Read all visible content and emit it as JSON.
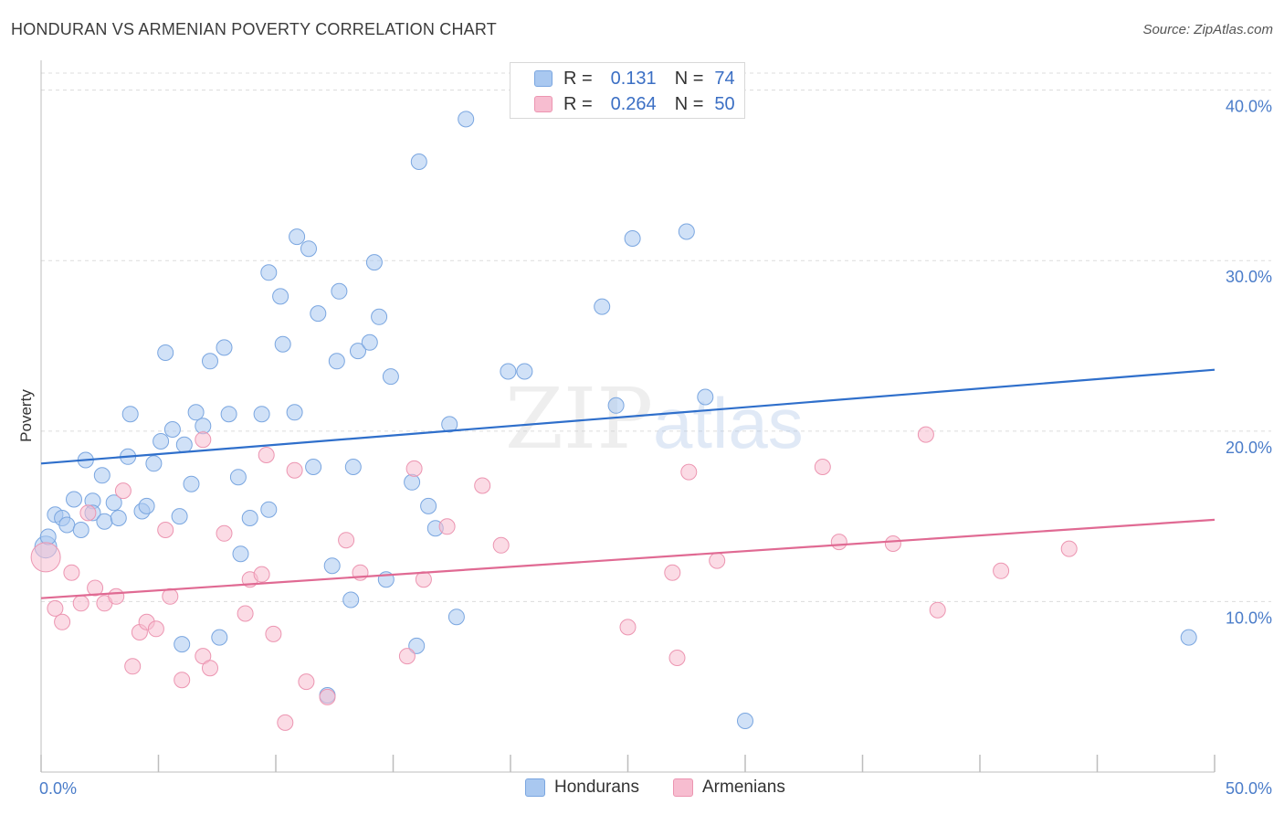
{
  "header": {
    "title": "HONDURAN VS ARMENIAN POVERTY CORRELATION CHART",
    "source": "Source: ZipAtlas.com"
  },
  "watermark": {
    "part1": "ZIP",
    "part2": "atlas"
  },
  "legend": {
    "rows": [
      {
        "r_label": "R =",
        "r_value": "0.131",
        "n_label": "N =",
        "n_value": "74",
        "color": "#a9c8f0",
        "stroke": "#7aa6e0"
      },
      {
        "r_label": "R =",
        "r_value": "0.264",
        "n_label": "N =",
        "n_value": "50",
        "color": "#f7bdd0",
        "stroke": "#ec95b1"
      }
    ],
    "bottom": [
      {
        "label": "Hondurans",
        "color": "#a9c8f0",
        "stroke": "#7aa6e0"
      },
      {
        "label": "Armenians",
        "color": "#f7bdd0",
        "stroke": "#ec95b1"
      }
    ]
  },
  "chart_data": {
    "type": "scatter",
    "xlabel": "",
    "ylabel": "Poverty",
    "xlim": [
      0,
      50
    ],
    "ylim": [
      0,
      41
    ],
    "x_tick_labels": [
      {
        "value": 0,
        "label": "0.0%"
      },
      {
        "value": 50,
        "label": "50.0%"
      }
    ],
    "y_tick_labels": [
      {
        "value": 10,
        "label": "10.0%"
      },
      {
        "value": 20,
        "label": "20.0%"
      },
      {
        "value": 30,
        "label": "30.0%"
      },
      {
        "value": 40,
        "label": "40.0%"
      }
    ],
    "series": [
      {
        "name": "Hondurans",
        "color": "#a9c8f0",
        "stroke": "#7aa6e0",
        "line_color": "#2f6fcb",
        "trend": {
          "x": [
            0,
            50
          ],
          "y": [
            18.1,
            23.6
          ]
        },
        "points": [
          [
            0.2,
            13.2
          ],
          [
            0.3,
            13.8
          ],
          [
            0.6,
            15.1
          ],
          [
            0.9,
            14.9
          ],
          [
            1.1,
            14.5
          ],
          [
            1.4,
            16.0
          ],
          [
            1.7,
            14.2
          ],
          [
            1.9,
            18.3
          ],
          [
            2.2,
            15.9
          ],
          [
            2.2,
            15.2
          ],
          [
            2.6,
            17.4
          ],
          [
            2.7,
            14.7
          ],
          [
            3.1,
            15.8
          ],
          [
            3.3,
            14.9
          ],
          [
            3.7,
            18.5
          ],
          [
            3.8,
            21.0
          ],
          [
            4.3,
            15.3
          ],
          [
            4.5,
            15.6
          ],
          [
            4.8,
            18.1
          ],
          [
            5.1,
            19.4
          ],
          [
            5.3,
            24.6
          ],
          [
            5.6,
            20.1
          ],
          [
            5.9,
            15.0
          ],
          [
            6.1,
            19.2
          ],
          [
            6.4,
            16.9
          ],
          [
            6.6,
            21.1
          ],
          [
            6.9,
            20.3
          ],
          [
            7.2,
            24.1
          ],
          [
            7.6,
            7.9
          ],
          [
            7.8,
            24.9
          ],
          [
            8.0,
            21.0
          ],
          [
            8.4,
            17.3
          ],
          [
            8.5,
            12.8
          ],
          [
            8.9,
            14.9
          ],
          [
            9.4,
            21.0
          ],
          [
            9.7,
            15.4
          ],
          [
            9.7,
            29.3
          ],
          [
            10.2,
            27.9
          ],
          [
            10.3,
            25.1
          ],
          [
            10.8,
            21.1
          ],
          [
            10.9,
            31.4
          ],
          [
            11.4,
            30.7
          ],
          [
            11.6,
            17.9
          ],
          [
            11.8,
            26.9
          ],
          [
            12.2,
            4.5
          ],
          [
            12.4,
            12.1
          ],
          [
            12.7,
            28.2
          ],
          [
            13.2,
            10.1
          ],
          [
            13.3,
            17.9
          ],
          [
            13.5,
            24.7
          ],
          [
            14.0,
            25.2
          ],
          [
            14.2,
            29.9
          ],
          [
            14.4,
            26.7
          ],
          [
            14.7,
            11.3
          ],
          [
            14.9,
            23.2
          ],
          [
            15.8,
            17.0
          ],
          [
            16.0,
            7.4
          ],
          [
            16.1,
            35.8
          ],
          [
            16.5,
            15.6
          ],
          [
            16.8,
            14.3
          ],
          [
            17.4,
            20.4
          ],
          [
            17.7,
            9.1
          ],
          [
            18.1,
            38.3
          ],
          [
            19.9,
            23.5
          ],
          [
            20.6,
            23.5
          ],
          [
            23.9,
            27.3
          ],
          [
            24.5,
            21.5
          ],
          [
            25.2,
            31.3
          ],
          [
            27.5,
            31.7
          ],
          [
            28.3,
            22.0
          ],
          [
            30.0,
            3.0
          ],
          [
            48.9,
            7.9
          ],
          [
            6.0,
            7.5
          ],
          [
            12.6,
            24.1
          ]
        ]
      },
      {
        "name": "Armenians",
        "color": "#f7bdd0",
        "stroke": "#ec95b1",
        "line_color": "#e06a93",
        "trend": {
          "x": [
            0,
            50
          ],
          "y": [
            10.2,
            14.8
          ]
        },
        "points": [
          [
            0.2,
            12.6
          ],
          [
            0.6,
            9.6
          ],
          [
            0.9,
            8.8
          ],
          [
            1.3,
            11.7
          ],
          [
            1.7,
            9.9
          ],
          [
            2.0,
            15.2
          ],
          [
            2.3,
            10.8
          ],
          [
            2.7,
            9.9
          ],
          [
            3.2,
            10.3
          ],
          [
            3.5,
            16.5
          ],
          [
            3.9,
            6.2
          ],
          [
            4.2,
            8.2
          ],
          [
            4.5,
            8.8
          ],
          [
            4.9,
            8.4
          ],
          [
            5.3,
            14.2
          ],
          [
            5.5,
            10.3
          ],
          [
            6.0,
            5.4
          ],
          [
            6.9,
            19.5
          ],
          [
            6.9,
            6.8
          ],
          [
            7.2,
            6.1
          ],
          [
            7.8,
            14.0
          ],
          [
            8.7,
            9.3
          ],
          [
            8.9,
            11.3
          ],
          [
            9.4,
            11.6
          ],
          [
            9.6,
            18.6
          ],
          [
            9.9,
            8.1
          ],
          [
            10.4,
            2.9
          ],
          [
            10.8,
            17.7
          ],
          [
            11.3,
            5.3
          ],
          [
            12.2,
            4.4
          ],
          [
            13.0,
            13.6
          ],
          [
            13.6,
            11.7
          ],
          [
            15.6,
            6.8
          ],
          [
            15.9,
            17.8
          ],
          [
            16.3,
            11.3
          ],
          [
            17.3,
            14.4
          ],
          [
            18.8,
            16.8
          ],
          [
            19.6,
            13.3
          ],
          [
            25.0,
            8.5
          ],
          [
            26.9,
            11.7
          ],
          [
            27.1,
            6.7
          ],
          [
            27.6,
            17.6
          ],
          [
            28.8,
            12.4
          ],
          [
            33.3,
            17.9
          ],
          [
            34.0,
            13.5
          ],
          [
            36.3,
            13.4
          ],
          [
            37.7,
            19.8
          ],
          [
            38.2,
            9.5
          ],
          [
            40.9,
            11.8
          ],
          [
            43.8,
            13.1
          ]
        ]
      }
    ]
  }
}
